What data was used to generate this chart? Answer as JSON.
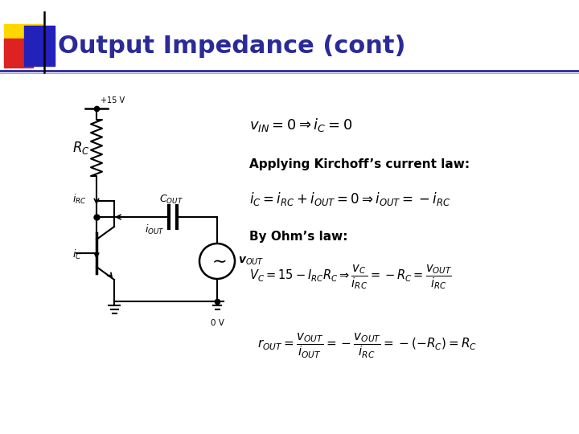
{
  "title": "Output Impedance (cont)",
  "title_color": "#2a2a99",
  "title_fontsize": 22,
  "bg_color": "#ffffff",
  "eq1": "$v_{IN} = 0 \\Rightarrow i_C = 0$",
  "label_kirchoff": "Applying Kirchoff’s current law:",
  "eq2": "$i_C = i_{RC} + i_{OUT} = 0 \\Rightarrow i_{OUT} = -i_{RC}$",
  "label_ohm": "By Ohm’s law:",
  "eq3": "$V_C = 15 - I_{RC}R_C \\Rightarrow \\dfrac{v_C}{i_{RC}} = -R_C = \\dfrac{v_{OUT}}{i_{RC}}$",
  "eq4": "$r_{OUT} = \\dfrac{v_{OUT}}{i_{OUT}} = -\\dfrac{v_{OUT}}{i_{RC}} = -(-R_C) = R_C$",
  "accent_yellow": "#FFD700",
  "accent_red": "#dd2222",
  "accent_blue": "#2222bb"
}
